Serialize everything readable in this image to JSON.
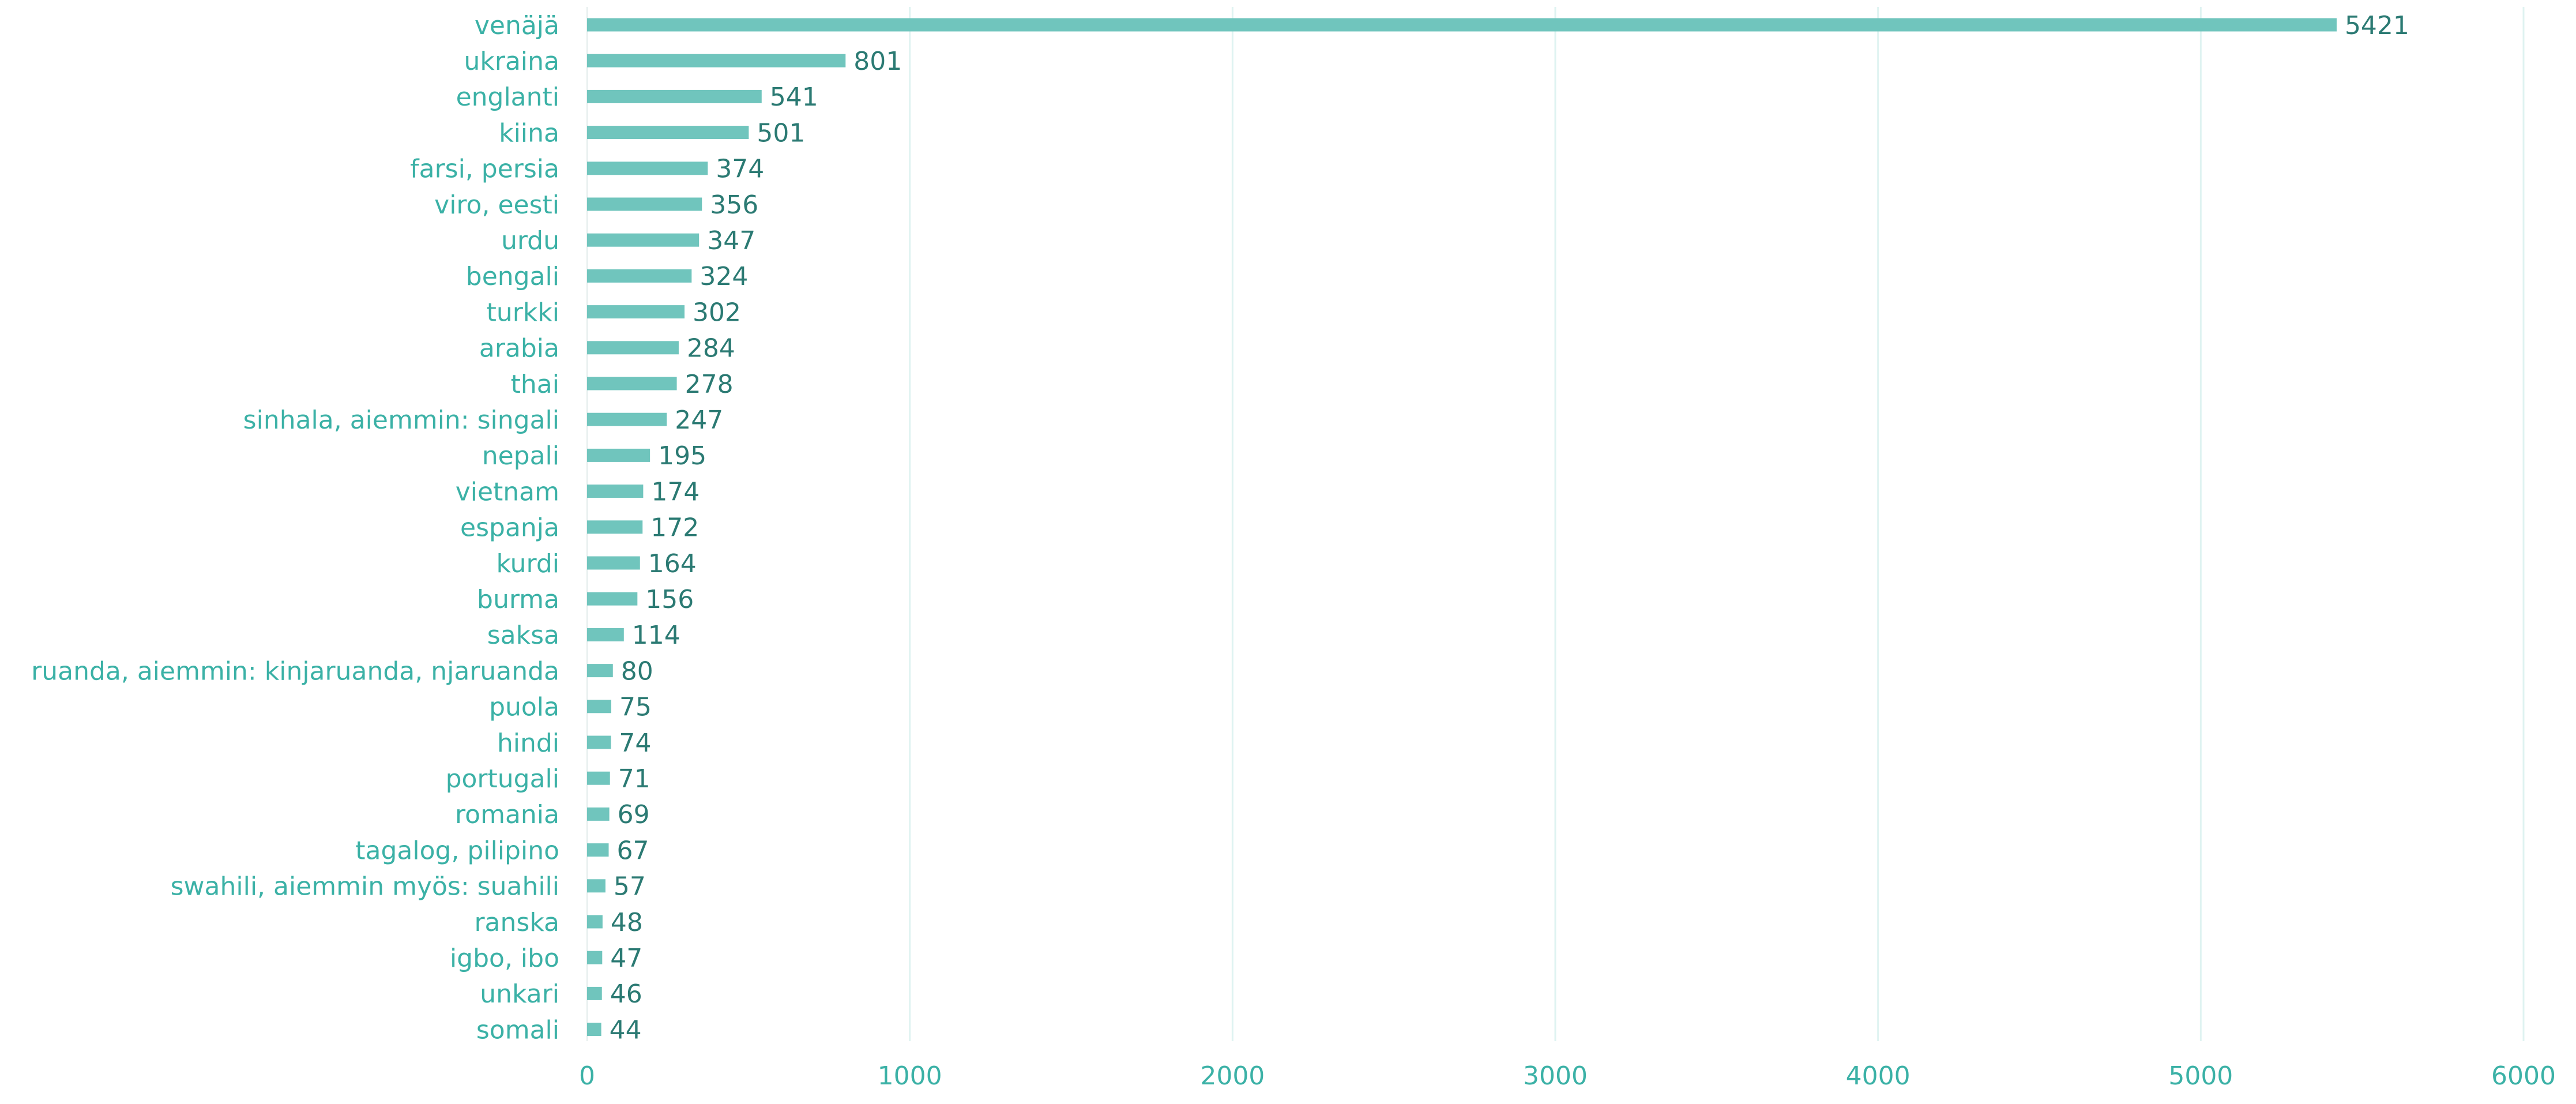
{
  "chart_data": {
    "type": "bar",
    "orientation": "horizontal",
    "title": "",
    "xlabel": "",
    "ylabel": "",
    "xlim": [
      0,
      6000
    ],
    "x_ticks": [
      0,
      1000,
      2000,
      3000,
      4000,
      5000,
      6000
    ],
    "grid": "vertical",
    "legend": "none",
    "categories": [
      "venäjä",
      "ukraina",
      "englanti",
      "kiina",
      "farsi, persia",
      "viro, eesti",
      "urdu",
      "bengali",
      "turkki",
      "arabia",
      "thai",
      "sinhala, aiemmin: singali",
      "nepali",
      "vietnam",
      "espanja",
      "kurdi",
      "burma",
      "saksa",
      "ruanda, aiemmin: kinjaruanda, njaruanda",
      "puola",
      "hindi",
      "portugali",
      "romania",
      "tagalog, pilipino",
      "swahili, aiemmin myös: suahili",
      "ranska",
      "igbo, ibo",
      "unkari",
      "somali"
    ],
    "values": [
      5421,
      801,
      541,
      501,
      374,
      356,
      347,
      324,
      302,
      284,
      278,
      247,
      195,
      174,
      172,
      164,
      156,
      114,
      80,
      75,
      74,
      71,
      69,
      67,
      57,
      48,
      47,
      46,
      44
    ],
    "colors": {
      "bar": "#70c5bd",
      "category_label": "#3bb1a6",
      "value_label": "#2b7a73",
      "tick_label": "#3bb1a6",
      "gridline": "#dff3f1"
    }
  }
}
